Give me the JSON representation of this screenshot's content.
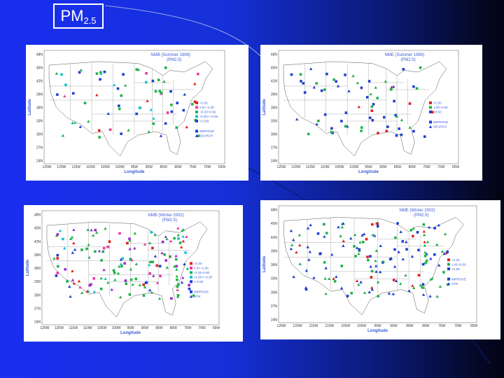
{
  "title": {
    "main": "PM",
    "sub": "2.5"
  },
  "colors": {
    "red": "#e02020",
    "pink": "#e83aa0",
    "green": "#22b14c",
    "cyan": "#19c0d0",
    "blue": "#1f3fd0",
    "purple": "#9a2bd0"
  },
  "panels": [
    {
      "title_line1": "NMB (Summer 1999)",
      "title_line2": "(PM2.5)",
      "ylabel": "Latitude",
      "xlabel": "Longitude",
      "yticks": [
        "48N",
        "45N",
        "42N",
        "39N",
        "36N",
        "33N",
        "30N",
        "27N",
        "24N"
      ],
      "xticks": [
        "125W",
        "120W",
        "115W",
        "110W",
        "105W",
        "100W",
        "95W",
        "90W",
        "85W",
        "80W",
        "75W",
        "70W",
        "65W"
      ],
      "legend_bins": [
        {
          "label": ">1.00",
          "color": "red"
        },
        {
          "label": "0.5>~1.00",
          "color": "pink"
        },
        {
          "label": "~0.33~0.50",
          "color": "green"
        },
        {
          "label": "-0.33>~-0.50",
          "color": "cyan"
        },
        {
          "label": "<-0.50",
          "color": "blue"
        }
      ],
      "legend_networks": [
        "IMPROVE",
        "SEARCH"
      ]
    },
    {
      "title_line1": "NME (Summer 1999)",
      "title_line2": "(PM2.5)",
      "ylabel": "Latitude",
      "xlabel": "Longitude",
      "yticks": [
        "48N",
        "45N",
        "42N",
        "39N",
        "36N",
        "33N",
        "30N",
        "27N",
        "24N"
      ],
      "xticks": [
        "125W",
        "120W",
        "115W",
        "110W",
        "105W",
        "100W",
        "95W",
        "90W",
        "85W",
        "80W",
        "75W",
        "70W",
        "65W"
      ],
      "legend_bins": [
        {
          "label": ">1.50",
          "color": "red"
        },
        {
          "label": "1.00~0.50",
          "color": "green"
        },
        {
          "label": "<0.50",
          "color": "blue"
        }
      ],
      "legend_networks": [
        "IMPROVE",
        "SEARCH"
      ]
    },
    {
      "title_line1": "NMB (Winter 2002)",
      "title_line2": "(PM2.5)",
      "ylabel": "Latitude",
      "xlabel": "Longitude",
      "yticks": [
        "48N",
        "45N",
        "42N",
        "39N",
        "36N",
        "33N",
        "30N",
        "27N",
        "24N"
      ],
      "xticks": [
        "125W",
        "120W",
        "115W",
        "110W",
        "105W",
        "100W",
        "95W",
        "90W",
        "85W",
        "80W",
        "75W",
        "70W",
        "65W"
      ],
      "legend_bins": [
        {
          "label": ">1.00",
          "color": "red"
        },
        {
          "label": "0.5>~1.00",
          "color": "pink"
        },
        {
          "label": "-0.33~0.50",
          "color": "green"
        },
        {
          "label": "-0.33>~-0.50",
          "color": "cyan"
        },
        {
          "label": "<-0.50",
          "color": "blue"
        }
      ],
      "legend_networks": [
        "IMPROVE",
        "STN"
      ]
    },
    {
      "title_line1": "NME (Winter 2002)",
      "title_line2": "(PM2.5)",
      "ylabel": "Latitude",
      "xlabel": "Longitude",
      "yticks": [
        "48N",
        "45N",
        "42N",
        "39N",
        "36N",
        "33N",
        "30N",
        "27N",
        "24N"
      ],
      "xticks": [
        "125W",
        "120W",
        "115W",
        "110W",
        "105W",
        "100W",
        "95W",
        "90W",
        "85W",
        "80W",
        "75W",
        "70W",
        "65W"
      ],
      "legend_bins": [
        {
          "label": ">1.00",
          "color": "red"
        },
        {
          "label": "1.00~0.50",
          "color": "green"
        },
        {
          "label": "<0.50",
          "color": "blue"
        }
      ],
      "legend_networks": [
        "IMPROVE",
        "STN"
      ]
    }
  ]
}
